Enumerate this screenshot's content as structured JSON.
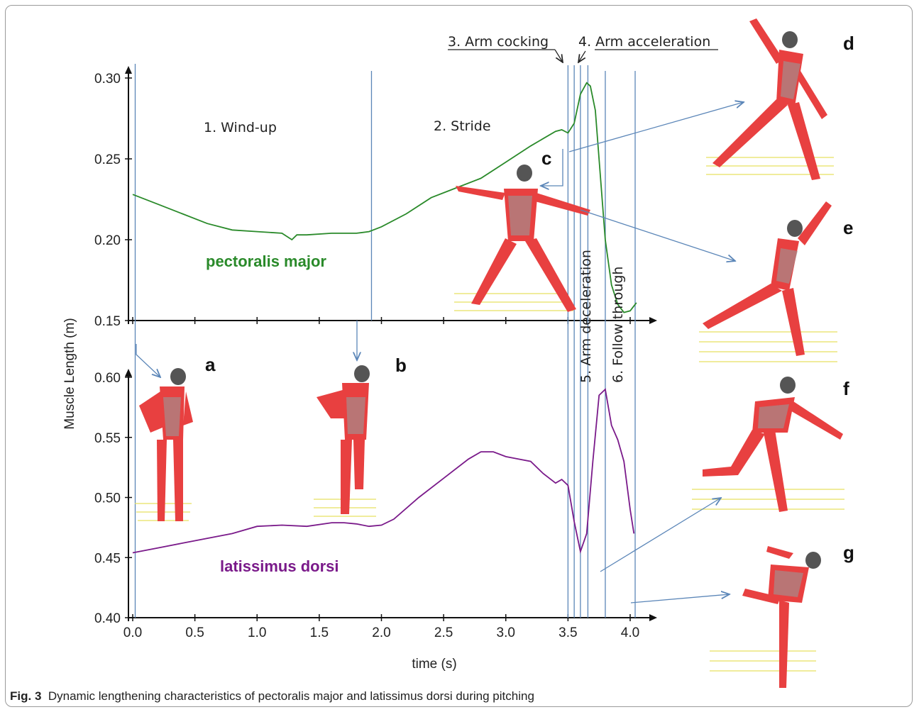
{
  "caption": {
    "label": "Fig. 3",
    "text": "Dynamic lengthening characteristics of pectoralis major and latissimus dorsi during pitching"
  },
  "colors": {
    "pectoralis": "#2a8a2a",
    "latissimus": "#7a1a8a",
    "marker": "#5b86b8",
    "axis": "#111111",
    "muscle_red": "#e84040",
    "floor_yellow": "#e8e060"
  },
  "chart_data": [
    {
      "type": "line",
      "panel": "top",
      "ylabel": "Muscle Length (m)",
      "ylim": [
        0.15,
        0.3
      ],
      "yticks": [
        "0.15",
        "0.20",
        "0.25",
        "0.30"
      ],
      "xlim": [
        0.0,
        4.2
      ],
      "series": [
        {
          "name": "pectoralis major",
          "x": [
            0.0,
            0.2,
            0.4,
            0.6,
            0.8,
            1.0,
            1.2,
            1.28,
            1.32,
            1.4,
            1.6,
            1.8,
            1.9,
            2.0,
            2.2,
            2.4,
            2.6,
            2.8,
            3.0,
            3.2,
            3.4,
            3.45,
            3.5,
            3.55,
            3.6,
            3.65,
            3.68,
            3.72,
            3.76,
            3.8,
            3.85,
            3.9,
            3.95,
            4.0,
            4.05
          ],
          "values": [
            0.228,
            0.222,
            0.216,
            0.21,
            0.206,
            0.205,
            0.204,
            0.2,
            0.203,
            0.203,
            0.204,
            0.204,
            0.205,
            0.208,
            0.216,
            0.226,
            0.232,
            0.238,
            0.248,
            0.258,
            0.267,
            0.268,
            0.266,
            0.272,
            0.29,
            0.297,
            0.295,
            0.28,
            0.24,
            0.2,
            0.172,
            0.16,
            0.155,
            0.156,
            0.161
          ]
        }
      ],
      "annotations": {
        "phases": [
          "1. Wind-up",
          "2. Stride",
          "3. Arm cocking",
          "4. Arm acceleration",
          "5. Arm deceleration",
          "6. Follow through"
        ]
      }
    },
    {
      "type": "line",
      "panel": "bottom",
      "xlabel": "time (s)",
      "ylim": [
        0.4,
        0.6
      ],
      "yticks": [
        "0.40",
        "0.45",
        "0.50",
        "0.55",
        "0.60"
      ],
      "xlim": [
        0.0,
        4.2
      ],
      "xticks": [
        "0.0",
        "0.5",
        "1.0",
        "1.5",
        "2.0",
        "2.5",
        "3.0",
        "3.5",
        "4.0"
      ],
      "series": [
        {
          "name": "latissimus dorsi",
          "x": [
            0.0,
            0.2,
            0.4,
            0.6,
            0.8,
            1.0,
            1.2,
            1.4,
            1.6,
            1.7,
            1.8,
            1.9,
            2.0,
            2.1,
            2.3,
            2.5,
            2.7,
            2.8,
            2.9,
            3.0,
            3.1,
            3.2,
            3.3,
            3.4,
            3.45,
            3.5,
            3.55,
            3.6,
            3.65,
            3.7,
            3.75,
            3.8,
            3.85,
            3.9,
            3.95,
            4.0,
            4.03
          ],
          "values": [
            0.454,
            0.458,
            0.462,
            0.466,
            0.47,
            0.476,
            0.477,
            0.476,
            0.479,
            0.479,
            0.478,
            0.476,
            0.477,
            0.482,
            0.5,
            0.516,
            0.532,
            0.538,
            0.538,
            0.534,
            0.532,
            0.53,
            0.52,
            0.512,
            0.515,
            0.51,
            0.48,
            0.455,
            0.47,
            0.53,
            0.585,
            0.59,
            0.56,
            0.548,
            0.53,
            0.49,
            0.47
          ]
        }
      ]
    }
  ],
  "markers": {
    "boundaries_s": [
      0.02,
      1.92,
      3.5,
      3.55,
      3.6,
      3.66,
      3.8,
      4.04
    ],
    "letters": [
      "a",
      "b",
      "c",
      "d",
      "e",
      "f",
      "g"
    ]
  }
}
